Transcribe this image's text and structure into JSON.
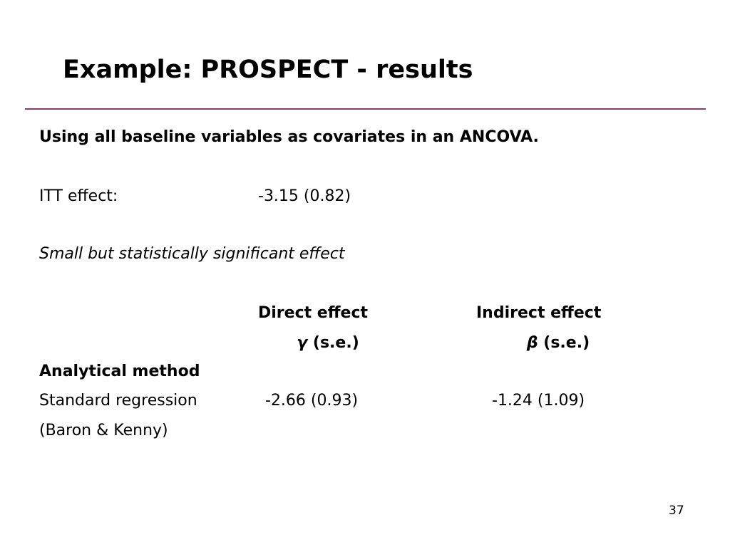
{
  "header": {
    "title": "Example: PROSPECT - results"
  },
  "body": {
    "intro": "Using all baseline variables as covariates in an ANCOVA.",
    "itt": {
      "label": "ITT effect:",
      "value": "-3.15 (0.82)"
    },
    "note": "Small but statistically significant effect"
  },
  "table": {
    "columns": [
      {
        "heading": "Direct effect",
        "symbol": "γ",
        "unit": "(s.e.)"
      },
      {
        "heading": "Indirect effect",
        "symbol": "β",
        "unit": "(s.e.)"
      }
    ],
    "row_group": "Analytical method",
    "rows": [
      [
        "Standard regression",
        "-2.66 (0.93)",
        "-1.24 (1.09)"
      ],
      [
        "(Baron & Kenny)"
      ]
    ]
  },
  "footer": {
    "page": "37"
  }
}
